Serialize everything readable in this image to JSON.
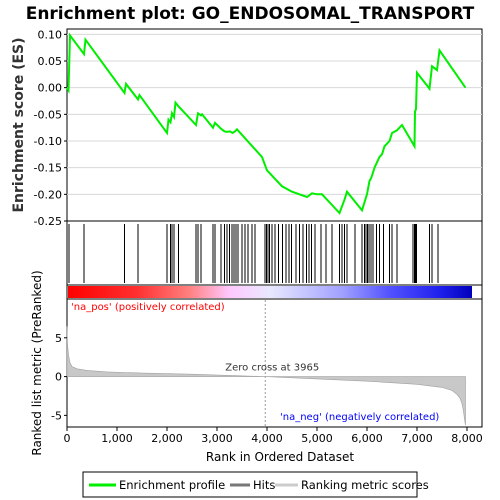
{
  "chart_data": [
    {
      "type": "line",
      "title": "Enrichment plot: GO_ENDOSOMAL_TRANSPORT",
      "ylabel": "Enrichment score (ES)",
      "xlabel": "",
      "xlim": [
        0,
        8300
      ],
      "ylim": [
        -0.25,
        0.11
      ],
      "y_ticks": [
        "0.10",
        "0.05",
        "0.00",
        "-0.05",
        "-0.10",
        "-0.15",
        "-0.20",
        "-0.25"
      ],
      "grid": true,
      "color": "#00ee00",
      "series": [
        {
          "name": "Enrichment profile",
          "x": [
            0,
            30,
            60,
            340,
            370,
            1150,
            1180,
            1420,
            1450,
            2000,
            2030,
            2070,
            2100,
            2140,
            2170,
            2230,
            2580,
            2620,
            2680,
            2700,
            2920,
            2960,
            3080,
            3150,
            3200,
            3260,
            3310,
            3360,
            3400,
            3900,
            4000,
            4300,
            4500,
            4800,
            4900,
            5000,
            5100,
            5300,
            5450,
            5550,
            5600,
            5900,
            5950,
            6000,
            6050,
            6080,
            6100,
            6150,
            6200,
            6250,
            6300,
            6350,
            6450,
            6500,
            6600,
            6700,
            6950,
            6960,
            6980,
            7000,
            7250,
            7300,
            7400,
            7450,
            7970
          ],
          "y": [
            0.0,
            -0.005,
            0.098,
            0.063,
            0.09,
            -0.01,
            0.007,
            -0.022,
            -0.014,
            -0.085,
            -0.06,
            -0.065,
            -0.048,
            -0.055,
            -0.028,
            -0.035,
            -0.07,
            -0.048,
            -0.052,
            -0.05,
            -0.075,
            -0.066,
            -0.077,
            -0.082,
            -0.083,
            -0.082,
            -0.085,
            -0.082,
            -0.078,
            -0.13,
            -0.155,
            -0.185,
            -0.195,
            -0.205,
            -0.198,
            -0.2,
            -0.2,
            -0.22,
            -0.235,
            -0.21,
            -0.195,
            -0.23,
            -0.215,
            -0.2,
            -0.175,
            -0.17,
            -0.165,
            -0.15,
            -0.14,
            -0.13,
            -0.125,
            -0.11,
            -0.1,
            -0.085,
            -0.08,
            -0.07,
            -0.11,
            -0.045,
            -0.04,
            0.028,
            -0.002,
            0.04,
            0.033,
            0.07,
            0.0
          ]
        }
      ]
    },
    {
      "type": "barcode",
      "name": "Hits",
      "hits": [
        40,
        340,
        1150,
        1420,
        2000,
        2070,
        2100,
        2140,
        2230,
        2580,
        2620,
        2680,
        2920,
        2960,
        3080,
        3150,
        3200,
        3250,
        3300,
        3340,
        3380,
        3420,
        3500,
        3560,
        3620,
        3700,
        3760,
        3960,
        3990,
        4020,
        4050,
        4100,
        4160,
        4230,
        4310,
        4380,
        4440,
        4490,
        4580,
        4650,
        4720,
        4790,
        4840,
        4890,
        4960,
        5080,
        5180,
        5300,
        5450,
        5500,
        5550,
        5600,
        5760,
        5900,
        5950,
        5980,
        6010,
        6040,
        6080,
        6120,
        6190,
        6250,
        6330,
        6450,
        6500,
        6600,
        6920,
        6950,
        6970,
        6990,
        7250,
        7300,
        7420
      ]
    },
    {
      "type": "area",
      "ylabel": "Ranked list metric (PreRanked)",
      "xlabel": "Rank in Ordered Dataset",
      "xlim": [
        0,
        8300
      ],
      "ylim": [
        -6.5,
        10
      ],
      "x_ticks": [
        "0",
        "1,000",
        "2,000",
        "3,000",
        "4,000",
        "5,000",
        "6,000",
        "7,000",
        "8,000"
      ],
      "y_ticks": [
        "5",
        "0",
        "-5"
      ],
      "color": "#b8b8b8",
      "zero_cross_rank": 3965,
      "zero_cross_label": "Zero cross at 3965",
      "pos_label": "'na_pos' (positively correlated)",
      "neg_label": "'na_neg' (negatively correlated)",
      "pos_color": "#ff0000",
      "neg_color": "#0000ff",
      "series": [
        {
          "name": "Ranking metric scores",
          "x": [
            0,
            10,
            30,
            60,
            100,
            200,
            400,
            800,
            1500,
            2500,
            3965,
            5000,
            6000,
            7000,
            7500,
            7700,
            7800,
            7860,
            7900,
            7930,
            7950,
            7970
          ],
          "y": [
            6.5,
            4.2,
            2.8,
            1.8,
            1.3,
            1.0,
            0.8,
            0.6,
            0.45,
            0.3,
            0.0,
            -0.3,
            -0.6,
            -1.0,
            -1.4,
            -1.8,
            -2.3,
            -2.8,
            -3.5,
            -4.5,
            -5.5,
            -6.3
          ]
        }
      ]
    }
  ],
  "legend": {
    "items": [
      {
        "label": "Enrichment profile",
        "color": "#00ee00"
      },
      {
        "label": "Hits",
        "color": "#777777"
      },
      {
        "label": "Ranking metric scores",
        "color": "#cccccc"
      }
    ]
  }
}
